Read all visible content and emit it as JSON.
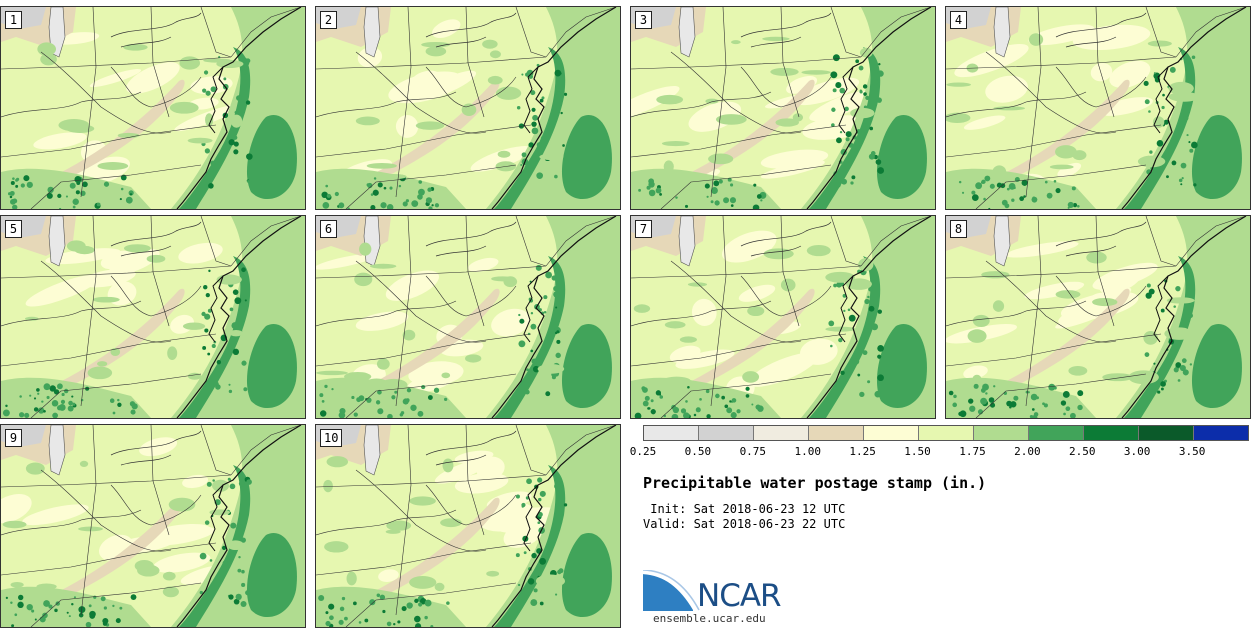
{
  "panels": [
    {
      "label": "1"
    },
    {
      "label": "2"
    },
    {
      "label": "3"
    },
    {
      "label": "4"
    },
    {
      "label": "5"
    },
    {
      "label": "6"
    },
    {
      "label": "7"
    },
    {
      "label": "8"
    },
    {
      "label": "9"
    },
    {
      "label": "10"
    }
  ],
  "colorbar": {
    "colors": [
      "#e8e8e8",
      "#d2d2d2",
      "#f0ece0",
      "#e6d8b8",
      "#fdfdd4",
      "#e6f7b0",
      "#b0dc90",
      "#41a45a",
      "#0c7b36",
      "#0b5a2a",
      "#0c2daa"
    ],
    "ticks": [
      "0.25",
      "0.50",
      "0.75",
      "1.00",
      "1.25",
      "1.50",
      "1.75",
      "2.00",
      "2.50",
      "3.00",
      "3.50"
    ]
  },
  "title": "Precipitable water postage stamp (in.)",
  "init": " Init: Sat 2018-06-23 12 UTC",
  "valid": "Valid: Sat 2018-06-23 22 UTC",
  "logo": {
    "name": "NCAR",
    "url": "ensemble.ucar.edu"
  }
}
